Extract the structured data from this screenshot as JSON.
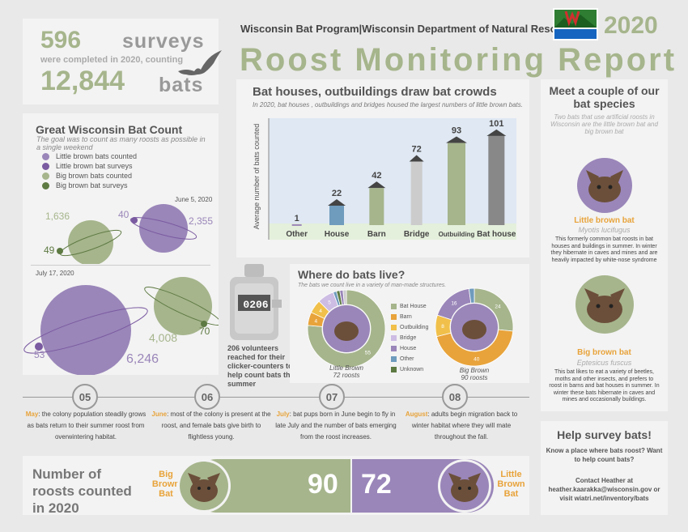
{
  "stats": {
    "surveys_number": "596",
    "surveys_word": "surveys",
    "surveys_line": "were completed in 2020, counting",
    "bats_number": "12,844",
    "bats_word": "bats"
  },
  "header": {
    "org": "Wisconsin Bat Program|Wisconsin Department of Natural Resources",
    "logo_text": "WISCONSIN DEPT. OF NATURAL RESOURCES",
    "year": "2020",
    "title": "Roost Monitoring Report"
  },
  "bat_count": {
    "title": "Great Wisconsin Bat Count",
    "subtitle": "The goal was to count as many roosts as possible in a single weekend",
    "legend": [
      {
        "label": "Little brown bats counted",
        "color": "#9a86b9"
      },
      {
        "label": "Little brown bat surveys",
        "color": "#7a5aa0"
      },
      {
        "label": "Big brown bats counted",
        "color": "#a6b58c"
      },
      {
        "label": "Big brown bat surveys",
        "color": "#5e7a43"
      }
    ],
    "june": {
      "date": "June 5, 2020",
      "big_brown_counted": "1,636",
      "big_brown_surveys": "49",
      "little_brown_surveys": "40",
      "little_brown_counted": "2,355"
    },
    "july": {
      "date": "July 17, 2020",
      "little_brown_surveys": "53",
      "little_brown_counted": "6,246",
      "big_brown_counted": "4,008",
      "big_brown_surveys": "70"
    }
  },
  "bar_chart": {
    "title": "Bat houses, outbuildings draw bat crowds",
    "subtitle": "In 2020, bat houses , outbuildings  and bridges housed the largest numbers of little brown bats.",
    "ylabel": "Average number of bats counted"
  },
  "chart_data": {
    "type": "bar",
    "categories": [
      "Other",
      "House",
      "Barn",
      "Bridge",
      "Outbuilding",
      "Bat house"
    ],
    "values": [
      1,
      22,
      42,
      72,
      93,
      101
    ],
    "ylabel": "Average number of bats counted",
    "ylim": [
      0,
      110
    ]
  },
  "where": {
    "title": "Where do bats live?",
    "subtitle": "The bats we count live in a variety of man-made structures.",
    "legend": [
      {
        "label": "Bat House",
        "color": "#a6b58c"
      },
      {
        "label": "Barn",
        "color": "#e8a33a"
      },
      {
        "label": "Outbuilding",
        "color": "#f0c04a"
      },
      {
        "label": "Bridge",
        "color": "#cdbce3"
      },
      {
        "label": "House",
        "color": "#9a86b9"
      },
      {
        "label": "Other",
        "color": "#6f9bbd"
      },
      {
        "label": "Unknown",
        "color": "#5e7a43"
      }
    ],
    "little_brown": {
      "label": "Little Brown",
      "roosts": "72 roosts",
      "segments": [
        {
          "label": "55",
          "value": 55,
          "color": "#a6b58c"
        },
        {
          "label": "4",
          "value": 4,
          "color": "#e8a33a"
        },
        {
          "label": "4",
          "value": 4,
          "color": "#f0c04a"
        },
        {
          "label": "5",
          "value": 5,
          "color": "#cdbce3"
        },
        {
          "label": "",
          "value": 1,
          "color": "#6f9bbd"
        },
        {
          "label": "",
          "value": 1,
          "color": "#5e7a43"
        },
        {
          "label": "",
          "value": 1,
          "color": "#9a86b9"
        },
        {
          "label": "",
          "value": 1,
          "color": "#cccccc"
        }
      ]
    },
    "big_brown": {
      "label": "Big Brown",
      "roosts": "90 roosts",
      "segments": [
        {
          "label": "24",
          "value": 24,
          "color": "#a6b58c"
        },
        {
          "label": "40",
          "value": 40,
          "color": "#e8a33a"
        },
        {
          "label": "8",
          "value": 8,
          "color": "#f0c04a"
        },
        {
          "label": "16",
          "value": 16,
          "color": "#9a86b9"
        },
        {
          "label": "",
          "value": 2,
          "color": "#6f9bbd"
        }
      ]
    }
  },
  "counter": {
    "display": "0206",
    "text": "206 volunteers reached for their clicker-counters to help count bats this summer"
  },
  "species": {
    "title": "Meet a couple of our bat species",
    "subtitle": "Two bats that use artificial roosts in Wisconsin are the little brown bat and big brown bat",
    "little": {
      "name": "Little brown bat",
      "latin": "Myotis lucifugus",
      "desc": "This formerly common bat roosts in bat houses and buildings in summer. In winter they hibernate in caves and mines and are heavily impacted by white-nose syndrome"
    },
    "big": {
      "name": "Big brown bat",
      "latin": "Eptesicus fuscus",
      "desc": "This bat likes to eat a variety of beetles, moths and other insects, and prefers to roost in barns and bat houses in summer. In winter these bats hibernate in caves and mines and occasionally buildings."
    }
  },
  "help": {
    "title": "Help survey bats!",
    "question": "Know a place where bats roost? Want to help count bats?",
    "contact": "Contact Heather at heather.kaarakka@wisconsin.gov or visit wiatri.net/inventory/bats"
  },
  "timeline": [
    {
      "num": "05",
      "month": "May",
      "text": ": the colony population steadily grows as bats return to their summer roost from overwintering habitat."
    },
    {
      "num": "06",
      "month": "June",
      "text": ": most of the colony is present at the roost, and female bats give birth to flightless young."
    },
    {
      "num": "07",
      "month": "July",
      "text": ": bat pups born in June begin to fly in late July and the number of bats emerging from the roost increases."
    },
    {
      "num": "08",
      "month": "August",
      "text": ": adults begin migration back to winter habitat where they will mate throughout the fall."
    }
  ],
  "roosts": {
    "title": "Number of roosts counted in 2020",
    "big_brown_label": "Big Brown Bat",
    "big_brown_value": "90",
    "little_brown_label": "Little Brown Bat",
    "little_brown_value": "72"
  }
}
